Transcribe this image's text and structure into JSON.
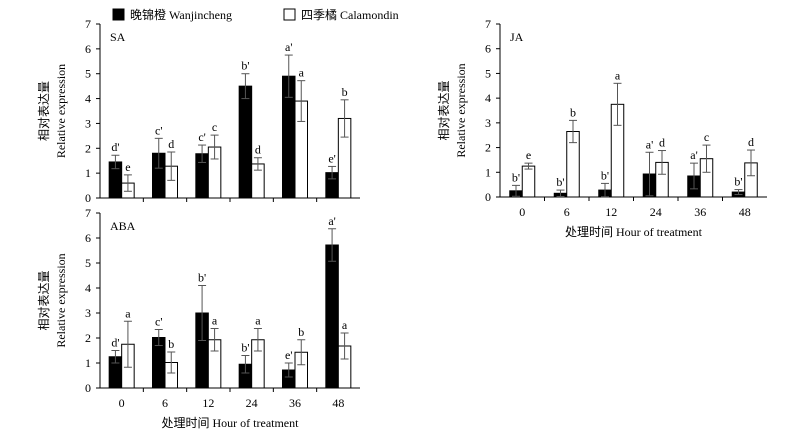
{
  "legend": [
    {
      "name": "晚锦橙 Wanjincheng",
      "color": "#000000"
    },
    {
      "name": "四季橘 Calamondin",
      "color": "#ffffff"
    }
  ],
  "chart_data": [
    {
      "type": "bar",
      "title": "SA",
      "categories": [
        "0",
        "6",
        "12",
        "24",
        "36",
        "48"
      ],
      "show_xticks": false,
      "xlabel": "",
      "ylabel_cn": "相对表达量",
      "ylabel": "Relative expression",
      "ylim": [
        0,
        7
      ],
      "yticks": [
        "0",
        "1",
        "2",
        "3",
        "4",
        "5",
        "6",
        "7"
      ],
      "series": [
        {
          "name": "晚锦橙 Wanjincheng",
          "values": [
            1.45,
            1.8,
            1.78,
            4.5,
            4.9,
            1.02
          ],
          "errors": [
            0.27,
            0.6,
            0.35,
            0.5,
            0.85,
            0.25
          ],
          "letters": [
            "d'",
            "c'",
            "c'",
            "b'",
            "a'",
            "e'"
          ]
        },
        {
          "name": "四季橘 Calamondin",
          "values": [
            0.6,
            1.28,
            2.05,
            1.37,
            3.9,
            3.2
          ],
          "errors": [
            0.33,
            0.57,
            0.48,
            0.25,
            0.82,
            0.75
          ],
          "letters": [
            "e",
            "d",
            "c",
            "d",
            "a",
            "b"
          ]
        }
      ]
    },
    {
      "type": "bar",
      "title": "JA",
      "categories": [
        "0",
        "6",
        "12",
        "24",
        "36",
        "48"
      ],
      "show_xticks": true,
      "xlabel": "处理时间  Hour of treatment",
      "ylabel_cn": "相对表达量",
      "ylabel": "Relative expression",
      "ylim": [
        0,
        7
      ],
      "yticks": [
        "0",
        "1",
        "2",
        "3",
        "4",
        "5",
        "6",
        "7"
      ],
      "series": [
        {
          "name": "晚锦橙 Wanjincheng",
          "values": [
            0.25,
            0.15,
            0.28,
            0.93,
            0.85,
            0.2
          ],
          "errors": [
            0.22,
            0.13,
            0.27,
            0.88,
            0.52,
            0.1
          ],
          "letters": [
            "b'",
            "b'",
            "b'",
            "a'",
            "a'",
            "b'"
          ]
        },
        {
          "name": "四季橘 Calamondin",
          "values": [
            1.25,
            2.65,
            3.75,
            1.4,
            1.55,
            1.38
          ],
          "errors": [
            0.12,
            0.45,
            0.85,
            0.48,
            0.55,
            0.52
          ],
          "letters": [
            "e",
            "b",
            "a",
            "d",
            "c",
            "d"
          ]
        }
      ]
    },
    {
      "type": "bar",
      "title": "ABA",
      "categories": [
        "0",
        "6",
        "12",
        "24",
        "36",
        "48"
      ],
      "show_xticks": true,
      "xlabel": "处理时间  Hour of treatment",
      "ylabel_cn": "相对表达量",
      "ylabel": "Relative expression",
      "ylim": [
        0,
        7
      ],
      "yticks": [
        "0",
        "1",
        "2",
        "3",
        "4",
        "5",
        "6",
        "7"
      ],
      "series": [
        {
          "name": "晚锦橙 Wanjincheng",
          "values": [
            1.25,
            2.02,
            3.0,
            0.95,
            0.72,
            5.72
          ],
          "errors": [
            0.25,
            0.32,
            1.1,
            0.35,
            0.28,
            0.65
          ],
          "letters": [
            "d'",
            "c'",
            "b'",
            "b'",
            "e'",
            "a'"
          ]
        },
        {
          "name": "四季橘 Calamondin",
          "values": [
            1.75,
            1.02,
            1.93,
            1.93,
            1.43,
            1.68
          ],
          "errors": [
            0.92,
            0.42,
            0.45,
            0.45,
            0.5,
            0.52
          ],
          "letters": [
            "a",
            "b",
            "a",
            "a",
            "b",
            "a"
          ]
        }
      ]
    }
  ]
}
